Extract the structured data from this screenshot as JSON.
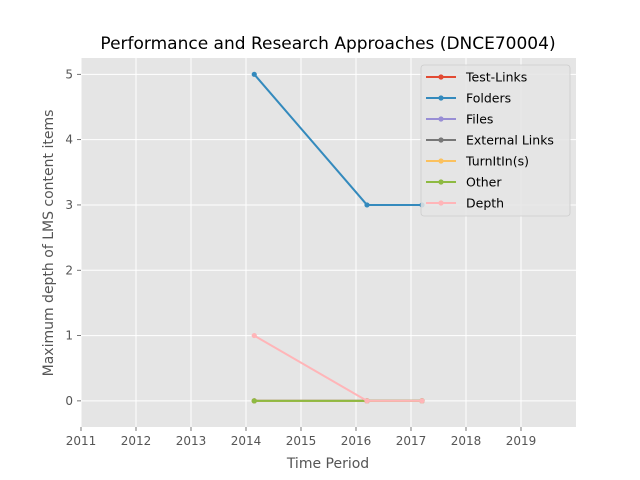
{
  "chart_data": {
    "type": "line",
    "title": "Performance and Research Approaches (DNCE70004)",
    "xlabel": "Time Period",
    "ylabel": "Maximum depth of LMS content items",
    "xlim": [
      2011,
      2020
    ],
    "ylim": [
      -0.4,
      5.25
    ],
    "xticks": [
      "2011",
      "2012",
      "2013",
      "2014",
      "2015",
      "2016",
      "2017",
      "2018",
      "2019"
    ],
    "yticks": [
      "0",
      "1",
      "2",
      "3",
      "4",
      "5"
    ],
    "grid": true,
    "legend_position": "top-right",
    "x": [
      2014.15,
      2016.2,
      2017.2
    ],
    "series": [
      {
        "name": "Test-Links",
        "color": "#E24A33",
        "values": [
          0,
          0,
          0
        ]
      },
      {
        "name": "Folders",
        "color": "#348ABD",
        "values": [
          5,
          3,
          3
        ]
      },
      {
        "name": "Files",
        "color": "#988ED5",
        "values": [
          0,
          0,
          0
        ]
      },
      {
        "name": "External Links",
        "color": "#777777",
        "values": [
          0,
          0,
          0
        ]
      },
      {
        "name": "TurnItIn(s)",
        "color": "#FBC15E",
        "values": [
          0,
          0,
          0
        ]
      },
      {
        "name": "Other",
        "color": "#8EBA42",
        "values": [
          0,
          0,
          0
        ]
      },
      {
        "name": "Depth",
        "color": "#FFB5B8",
        "values": [
          1,
          0,
          0
        ]
      }
    ]
  }
}
